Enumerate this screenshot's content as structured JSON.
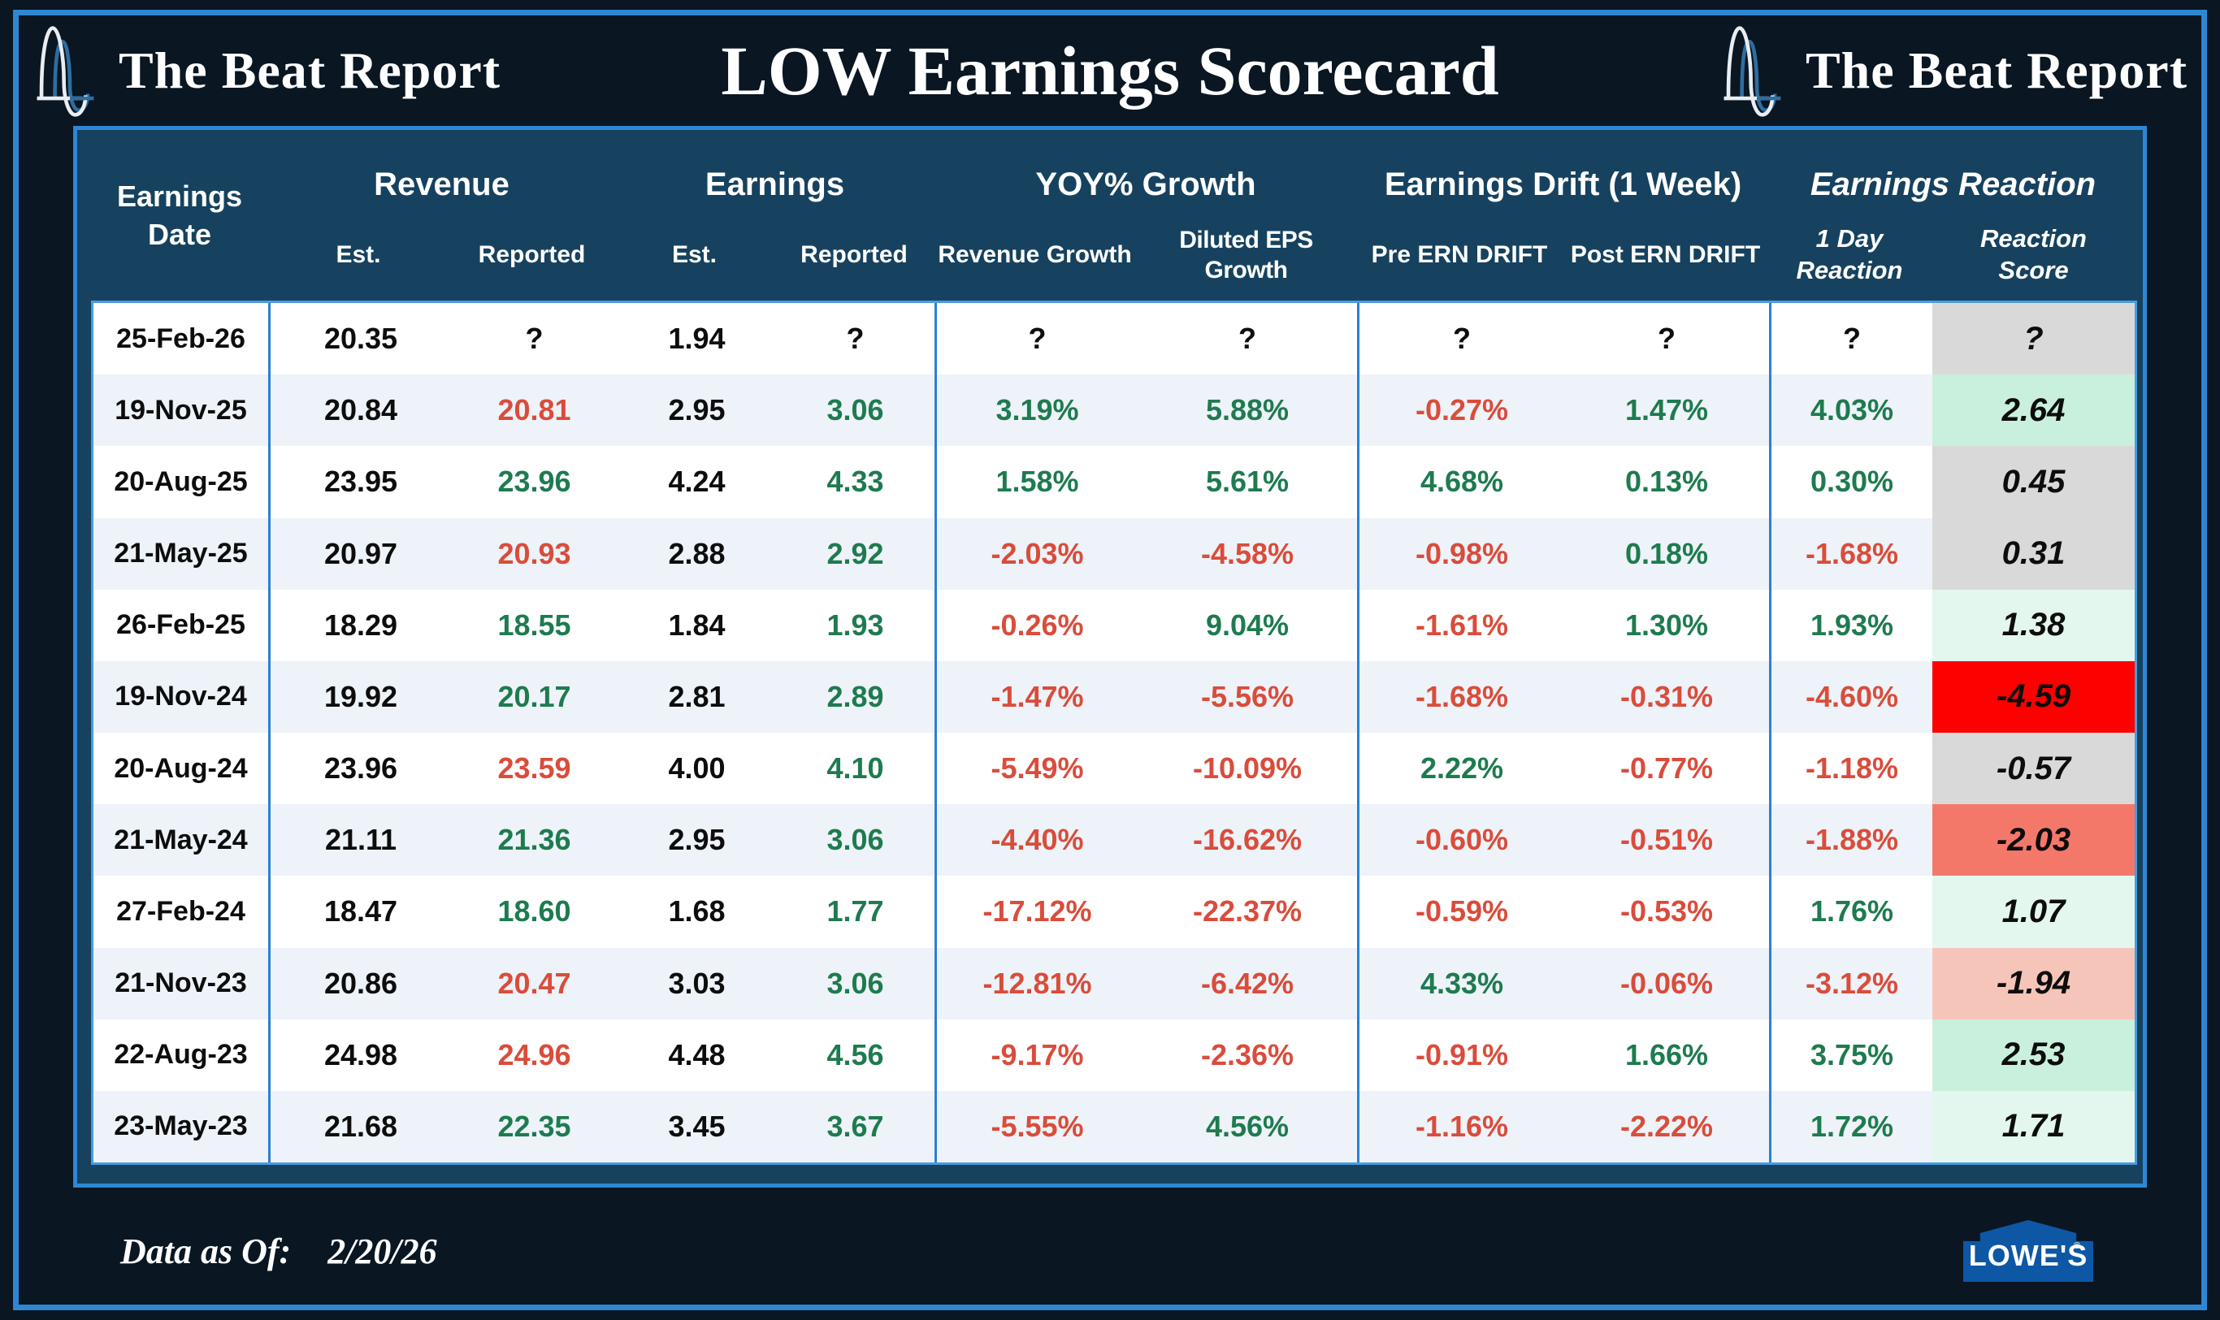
{
  "page": {
    "title": "LOW Earnings Scorecard",
    "brand": "The Beat Report",
    "footer_label": "Data as Of:",
    "footer_date": "2/20/26",
    "lowes_logo_text": "LOWE'S",
    "lowes_reg_mark": "®"
  },
  "palette": {
    "green": "#1e7b4f",
    "red": "#da4c3b",
    "ink": "#0d0d0d",
    "lowes_blue": "#0d57a5",
    "frame_blue": "#2f87d4",
    "header_band": "#16425f",
    "stripe": "#edf3f8",
    "score_gray": "#d9d9d9",
    "score_bright_red": "#fd0000",
    "score_salmon": "#f4786a",
    "score_light_salmon": "#f6c5ba",
    "score_mint": "#c9f0dc",
    "score_light_mint": "#e4f7ee"
  },
  "table": {
    "header": {
      "date": "Earnings Date",
      "groups": [
        "Revenue",
        "Earnings",
        "YOY% Growth",
        "Earnings Drift (1 Week)",
        "Earnings Reaction"
      ],
      "subs": [
        "Est.",
        "Reported",
        "Est.",
        "Reported",
        "Revenue Growth",
        "Diluted EPS Growth",
        "Pre ERN DRIFT",
        "Post ERN DRIFT",
        "1 Day Reaction",
        "Reaction Score"
      ]
    },
    "rows": [
      {
        "cells": [
          {
            "v": "25-Feb-26",
            "c": "k"
          },
          {
            "v": "20.35",
            "c": "k"
          },
          {
            "v": "?",
            "c": "k"
          },
          {
            "v": "1.94",
            "c": "k"
          },
          {
            "v": "?",
            "c": "k"
          },
          {
            "v": "?",
            "c": "k"
          },
          {
            "v": "?",
            "c": "k"
          },
          {
            "v": "?",
            "c": "k"
          },
          {
            "v": "?",
            "c": "k"
          },
          {
            "v": "?",
            "c": "k"
          },
          {
            "v": "?",
            "c": "k",
            "bg": "#d9d9d9"
          }
        ]
      },
      {
        "cells": [
          {
            "v": "19-Nov-25",
            "c": "k"
          },
          {
            "v": "20.84",
            "c": "k"
          },
          {
            "v": "20.81",
            "c": "r"
          },
          {
            "v": "2.95",
            "c": "k"
          },
          {
            "v": "3.06",
            "c": "g"
          },
          {
            "v": "3.19%",
            "c": "g"
          },
          {
            "v": "5.88%",
            "c": "g"
          },
          {
            "v": "-0.27%",
            "c": "r"
          },
          {
            "v": "1.47%",
            "c": "g"
          },
          {
            "v": "4.03%",
            "c": "g"
          },
          {
            "v": "2.64",
            "c": "k",
            "bg": "#c9f0dc"
          }
        ]
      },
      {
        "cells": [
          {
            "v": "20-Aug-25",
            "c": "k"
          },
          {
            "v": "23.95",
            "c": "k"
          },
          {
            "v": "23.96",
            "c": "g"
          },
          {
            "v": "4.24",
            "c": "k"
          },
          {
            "v": "4.33",
            "c": "g"
          },
          {
            "v": "1.58%",
            "c": "g"
          },
          {
            "v": "5.61%",
            "c": "g"
          },
          {
            "v": "4.68%",
            "c": "g"
          },
          {
            "v": "0.13%",
            "c": "g"
          },
          {
            "v": "0.30%",
            "c": "g"
          },
          {
            "v": "0.45",
            "c": "k",
            "bg": "#d9d9d9"
          }
        ]
      },
      {
        "cells": [
          {
            "v": "21-May-25",
            "c": "k"
          },
          {
            "v": "20.97",
            "c": "k"
          },
          {
            "v": "20.93",
            "c": "r"
          },
          {
            "v": "2.88",
            "c": "k"
          },
          {
            "v": "2.92",
            "c": "g"
          },
          {
            "v": "-2.03%",
            "c": "r"
          },
          {
            "v": "-4.58%",
            "c": "r"
          },
          {
            "v": "-0.98%",
            "c": "r"
          },
          {
            "v": "0.18%",
            "c": "g"
          },
          {
            "v": "-1.68%",
            "c": "r"
          },
          {
            "v": "0.31",
            "c": "k",
            "bg": "#d9d9d9"
          }
        ]
      },
      {
        "cells": [
          {
            "v": "26-Feb-25",
            "c": "k"
          },
          {
            "v": "18.29",
            "c": "k"
          },
          {
            "v": "18.55",
            "c": "g"
          },
          {
            "v": "1.84",
            "c": "k"
          },
          {
            "v": "1.93",
            "c": "g"
          },
          {
            "v": "-0.26%",
            "c": "r"
          },
          {
            "v": "9.04%",
            "c": "g"
          },
          {
            "v": "-1.61%",
            "c": "r"
          },
          {
            "v": "1.30%",
            "c": "g"
          },
          {
            "v": "1.93%",
            "c": "g"
          },
          {
            "v": "1.38",
            "c": "k",
            "bg": "#e4f7ee"
          }
        ]
      },
      {
        "cells": [
          {
            "v": "19-Nov-24",
            "c": "k"
          },
          {
            "v": "19.92",
            "c": "k"
          },
          {
            "v": "20.17",
            "c": "g"
          },
          {
            "v": "2.81",
            "c": "k"
          },
          {
            "v": "2.89",
            "c": "g"
          },
          {
            "v": "-1.47%",
            "c": "r"
          },
          {
            "v": "-5.56%",
            "c": "r"
          },
          {
            "v": "-1.68%",
            "c": "r"
          },
          {
            "v": "-0.31%",
            "c": "r"
          },
          {
            "v": "-4.60%",
            "c": "r"
          },
          {
            "v": "-4.59",
            "c": "k",
            "bg": "#fd0000"
          }
        ]
      },
      {
        "cells": [
          {
            "v": "20-Aug-24",
            "c": "k"
          },
          {
            "v": "23.96",
            "c": "k"
          },
          {
            "v": "23.59",
            "c": "r"
          },
          {
            "v": "4.00",
            "c": "k"
          },
          {
            "v": "4.10",
            "c": "g"
          },
          {
            "v": "-5.49%",
            "c": "r"
          },
          {
            "v": "-10.09%",
            "c": "r"
          },
          {
            "v": "2.22%",
            "c": "g"
          },
          {
            "v": "-0.77%",
            "c": "r"
          },
          {
            "v": "-1.18%",
            "c": "r"
          },
          {
            "v": "-0.57",
            "c": "k",
            "bg": "#d9d9d9"
          }
        ]
      },
      {
        "cells": [
          {
            "v": "21-May-24",
            "c": "k"
          },
          {
            "v": "21.11",
            "c": "k"
          },
          {
            "v": "21.36",
            "c": "g"
          },
          {
            "v": "2.95",
            "c": "k"
          },
          {
            "v": "3.06",
            "c": "g"
          },
          {
            "v": "-4.40%",
            "c": "r"
          },
          {
            "v": "-16.62%",
            "c": "r"
          },
          {
            "v": "-0.60%",
            "c": "r"
          },
          {
            "v": "-0.51%",
            "c": "r"
          },
          {
            "v": "-1.88%",
            "c": "r"
          },
          {
            "v": "-2.03",
            "c": "k",
            "bg": "#f4786a"
          }
        ]
      },
      {
        "cells": [
          {
            "v": "27-Feb-24",
            "c": "k"
          },
          {
            "v": "18.47",
            "c": "k"
          },
          {
            "v": "18.60",
            "c": "g"
          },
          {
            "v": "1.68",
            "c": "k"
          },
          {
            "v": "1.77",
            "c": "g"
          },
          {
            "v": "-17.12%",
            "c": "r"
          },
          {
            "v": "-22.37%",
            "c": "r"
          },
          {
            "v": "-0.59%",
            "c": "r"
          },
          {
            "v": "-0.53%",
            "c": "r"
          },
          {
            "v": "1.76%",
            "c": "g"
          },
          {
            "v": "1.07",
            "c": "k",
            "bg": "#e4f7ee"
          }
        ]
      },
      {
        "cells": [
          {
            "v": "21-Nov-23",
            "c": "k"
          },
          {
            "v": "20.86",
            "c": "k"
          },
          {
            "v": "20.47",
            "c": "r"
          },
          {
            "v": "3.03",
            "c": "k"
          },
          {
            "v": "3.06",
            "c": "g"
          },
          {
            "v": "-12.81%",
            "c": "r"
          },
          {
            "v": "-6.42%",
            "c": "r"
          },
          {
            "v": "4.33%",
            "c": "g"
          },
          {
            "v": "-0.06%",
            "c": "r"
          },
          {
            "v": "-3.12%",
            "c": "r"
          },
          {
            "v": "-1.94",
            "c": "k",
            "bg": "#f6c5ba"
          }
        ]
      },
      {
        "cells": [
          {
            "v": "22-Aug-23",
            "c": "k"
          },
          {
            "v": "24.98",
            "c": "k"
          },
          {
            "v": "24.96",
            "c": "r"
          },
          {
            "v": "4.48",
            "c": "k"
          },
          {
            "v": "4.56",
            "c": "g"
          },
          {
            "v": "-9.17%",
            "c": "r"
          },
          {
            "v": "-2.36%",
            "c": "r"
          },
          {
            "v": "-0.91%",
            "c": "r"
          },
          {
            "v": "1.66%",
            "c": "g"
          },
          {
            "v": "3.75%",
            "c": "g"
          },
          {
            "v": "2.53",
            "c": "k",
            "bg": "#c9f0dc"
          }
        ]
      },
      {
        "cells": [
          {
            "v": "23-May-23",
            "c": "k"
          },
          {
            "v": "21.68",
            "c": "k"
          },
          {
            "v": "22.35",
            "c": "g"
          },
          {
            "v": "3.45",
            "c": "k"
          },
          {
            "v": "3.67",
            "c": "g"
          },
          {
            "v": "-5.55%",
            "c": "r"
          },
          {
            "v": "4.56%",
            "c": "g"
          },
          {
            "v": "-1.16%",
            "c": "r"
          },
          {
            "v": "-2.22%",
            "c": "r"
          },
          {
            "v": "1.72%",
            "c": "g"
          },
          {
            "v": "1.71",
            "c": "k",
            "bg": "#e4f7ee"
          }
        ]
      }
    ]
  },
  "chart_data": {
    "type": "table",
    "title": "LOW Earnings Scorecard",
    "columns": [
      "Earnings Date",
      "Revenue Est.",
      "Revenue Reported",
      "Earnings Est.",
      "Earnings Reported",
      "YOY% Revenue Growth",
      "YOY% Diluted EPS Growth",
      "Pre ERN DRIFT",
      "Post ERN DRIFT",
      "1 Day Reaction",
      "Reaction Score"
    ],
    "rows": [
      [
        "25-Feb-26",
        "20.35",
        "?",
        "1.94",
        "?",
        "?",
        "?",
        "?",
        "?",
        "?",
        "?"
      ],
      [
        "19-Nov-25",
        "20.84",
        "20.81",
        "2.95",
        "3.06",
        "3.19%",
        "5.88%",
        "-0.27%",
        "1.47%",
        "4.03%",
        "2.64"
      ],
      [
        "20-Aug-25",
        "23.95",
        "23.96",
        "4.24",
        "4.33",
        "1.58%",
        "5.61%",
        "4.68%",
        "0.13%",
        "0.30%",
        "0.45"
      ],
      [
        "21-May-25",
        "20.97",
        "20.93",
        "2.88",
        "2.92",
        "-2.03%",
        "-4.58%",
        "-0.98%",
        "0.18%",
        "-1.68%",
        "0.31"
      ],
      [
        "26-Feb-25",
        "18.29",
        "18.55",
        "1.84",
        "1.93",
        "-0.26%",
        "9.04%",
        "-1.61%",
        "1.30%",
        "1.93%",
        "1.38"
      ],
      [
        "19-Nov-24",
        "19.92",
        "20.17",
        "2.81",
        "2.89",
        "-1.47%",
        "-5.56%",
        "-1.68%",
        "-0.31%",
        "-4.60%",
        "-4.59"
      ],
      [
        "20-Aug-24",
        "23.96",
        "23.59",
        "4.00",
        "4.10",
        "-5.49%",
        "-10.09%",
        "2.22%",
        "-0.77%",
        "-1.18%",
        "-0.57"
      ],
      [
        "21-May-24",
        "21.11",
        "21.36",
        "2.95",
        "3.06",
        "-4.40%",
        "-16.62%",
        "-0.60%",
        "-0.51%",
        "-1.88%",
        "-2.03"
      ],
      [
        "27-Feb-24",
        "18.47",
        "18.60",
        "1.68",
        "1.77",
        "-17.12%",
        "-22.37%",
        "-0.59%",
        "-0.53%",
        "1.76%",
        "1.07"
      ],
      [
        "21-Nov-23",
        "20.86",
        "20.47",
        "3.03",
        "3.06",
        "-12.81%",
        "-6.42%",
        "4.33%",
        "-0.06%",
        "-3.12%",
        "-1.94"
      ],
      [
        "22-Aug-23",
        "24.98",
        "24.96",
        "4.48",
        "4.56",
        "-9.17%",
        "-2.36%",
        "-0.91%",
        "1.66%",
        "3.75%",
        "2.53"
      ],
      [
        "23-May-23",
        "21.68",
        "22.35",
        "3.45",
        "3.67",
        "-5.55%",
        "4.56%",
        "-1.16%",
        "-2.22%",
        "1.72%",
        "1.71"
      ]
    ]
  }
}
